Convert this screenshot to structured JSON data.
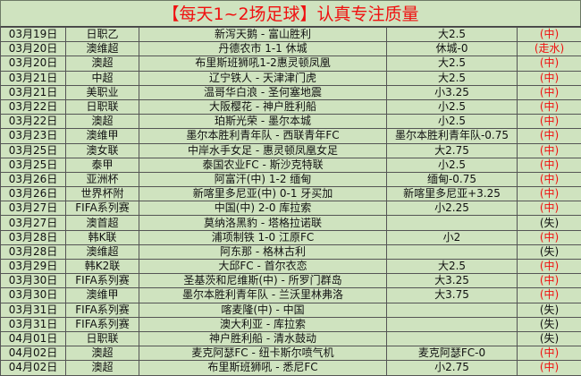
{
  "title": "【每天1~2场足球】认真专注质量",
  "colors": {
    "accent_red": "#f01010",
    "background": "#cfe3bf"
  },
  "rows": [
    {
      "date": "03月19日",
      "league": "日职乙",
      "match": "新泻天鹅 - 富山胜利",
      "tip": "大2.5",
      "result": "(中)"
    },
    {
      "date": "03月20日",
      "league": "澳维超",
      "match": "丹德农市 1-1 休城",
      "tip": "休城-0",
      "result": "(走水)"
    },
    {
      "date": "03月20日",
      "league": "澳超",
      "match": "布里斯班狮吼1-2惠灵顿凤凰",
      "tip": "大2.5",
      "result": "(中)"
    },
    {
      "date": "03月21日",
      "league": "中超",
      "match": "辽宁铁人 - 天津津门虎",
      "tip": "大2.5",
      "result": "(中)"
    },
    {
      "date": "03月21日",
      "league": "美职业",
      "match": "温哥华白浪 - 圣何塞地震",
      "tip": "小3.25",
      "result": "(中)"
    },
    {
      "date": "03月22日",
      "league": "日职联",
      "match": "大阪樱花 - 神户胜利船",
      "tip": "小2.5",
      "result": "(中)"
    },
    {
      "date": "03月22日",
      "league": "澳超",
      "match": "珀斯光荣 - 墨尔本城",
      "tip": "小2.5",
      "result": "(中)"
    },
    {
      "date": "03月23日",
      "league": "澳维甲",
      "match": "墨尔本胜利青年队 - 西联青年FC",
      "tip": "墨尔本胜利青年队-0.75",
      "result": "(中)"
    },
    {
      "date": "03月25日",
      "league": "澳女联",
      "match": "中岸水手女足 - 惠灵顿凤凰女足",
      "tip": "大2.75",
      "result": "(中)"
    },
    {
      "date": "03月25日",
      "league": "泰甲",
      "match": "泰国农业FC - 斯沙克特联",
      "tip": "小2.5",
      "result": "(中)"
    },
    {
      "date": "03月26日",
      "league": "亚洲杯",
      "match": "阿富汗(中) 1-2 缅甸",
      "tip": "缅甸-0.75",
      "result": "(中)"
    },
    {
      "date": "03月26日",
      "league": "世界杯附",
      "match": "新喀里多尼亚(中) 0-1 牙买加",
      "tip": "新喀里多尼亚+3.25",
      "result": "(中)"
    },
    {
      "date": "03月27日",
      "league": "FIFA系列赛",
      "match": "中国(中) 2-0 库拉索",
      "tip": "小2.25",
      "result": "(中)"
    },
    {
      "date": "03月27日",
      "league": "澳首超",
      "match": "莫纳洛黑豹 - 塔格拉诺联",
      "tip": "",
      "result": "(失)"
    },
    {
      "date": "03月28日",
      "league": "韩K联",
      "match": "浦项制铁 1-0 江原FC",
      "tip": "小2",
      "result": "(中)"
    },
    {
      "date": "03月28日",
      "league": "澳维超",
      "match": "阿东那 - 格林古利",
      "tip": "",
      "result": "(失)"
    },
    {
      "date": "03月29日",
      "league": "韩K2联",
      "match": "大邱FC - 首尔衣恋",
      "tip": "大2.5",
      "result": "(中)"
    },
    {
      "date": "03月30日",
      "league": "FIFA系列赛",
      "match": "圣基茨和尼维斯(中) - 所罗门群岛",
      "tip": "大3.25",
      "result": "(中)"
    },
    {
      "date": "03月30日",
      "league": "澳维甲",
      "match": "墨尔本胜利青年队 - 兰沃里林弗洛",
      "tip": "大3.75",
      "result": "(中)"
    },
    {
      "date": "03月31日",
      "league": "FIFA系列赛",
      "match": "喀麦隆(中) - 中国",
      "tip": "",
      "result": "(失)"
    },
    {
      "date": "03月31日",
      "league": "FIFA系列赛",
      "match": "澳大利亚 - 库拉索",
      "tip": "",
      "result": "(失)"
    },
    {
      "date": "04月01日",
      "league": "日职联",
      "match": "神户胜利船 - 清水鼓动",
      "tip": "",
      "result": "(失)"
    },
    {
      "date": "04月02日",
      "league": "澳超",
      "match": "麦克阿瑟FC - 纽卡斯尔喷气机",
      "tip": "麦克阿瑟FC-0",
      "result": "(中)"
    },
    {
      "date": "04月02日",
      "league": "澳超",
      "match": "布里斯班狮吼 - 悉尼FC",
      "tip": "小2.75",
      "result": "(中)"
    }
  ]
}
